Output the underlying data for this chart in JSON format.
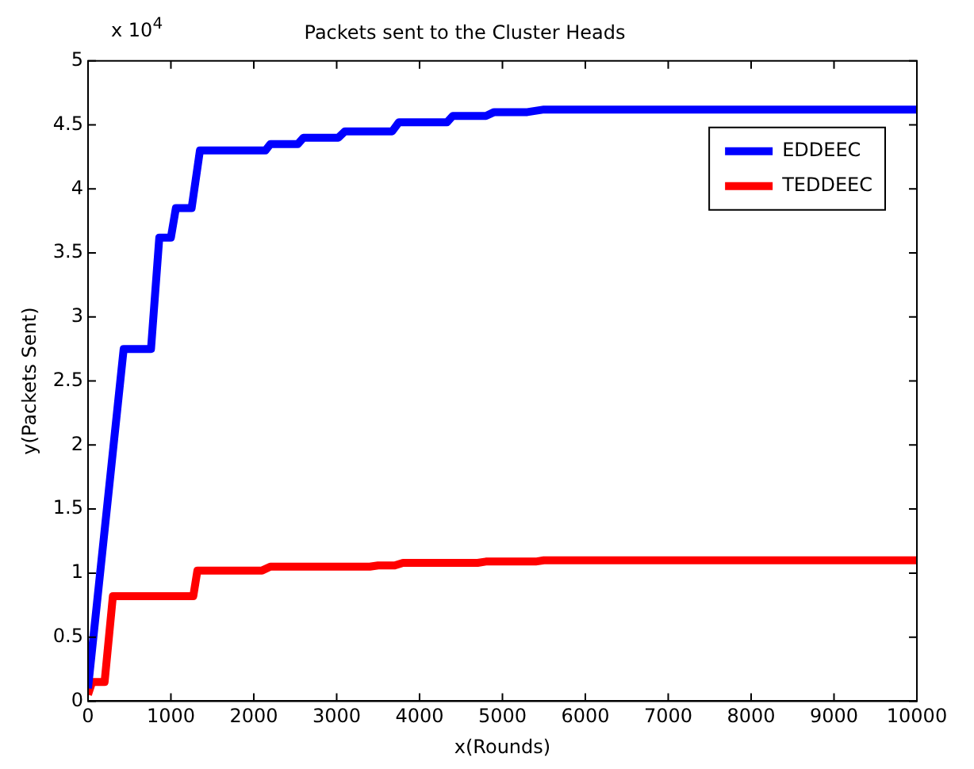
{
  "chart_data": {
    "type": "line",
    "title": "Packets sent to the Cluster Heads",
    "xlabel": "x(Rounds)",
    "ylabel": "y(Packets Sent)",
    "annotations": [
      "x 10$^{4}$"
    ],
    "xlim": [
      0,
      10000
    ],
    "xticks": [
      0,
      1000,
      2000,
      3000,
      4000,
      5000,
      6000,
      7000,
      8000,
      9000,
      10000
    ],
    "ylim": [
      0,
      5
    ],
    "yticks": [
      0,
      0.5,
      1,
      1.5,
      2,
      2.5,
      3,
      3.5,
      4,
      4.5,
      5
    ],
    "grid": false,
    "legend": "top right",
    "marker": "none",
    "line_style": "solid",
    "series": [
      {
        "name": "EDDEEC",
        "color": "#0000ff",
        "x": [
          0,
          430,
          760,
          860,
          1000,
          1060,
          1250,
          1350,
          2140,
          2200,
          2530,
          2600,
          3020,
          3100,
          3670,
          3750,
          4330,
          4400,
          4800,
          4900,
          5300,
          5500,
          10000
        ],
        "values": [
          0.1,
          2.75,
          2.75,
          3.62,
          3.62,
          3.85,
          3.85,
          4.3,
          4.3,
          4.35,
          4.35,
          4.4,
          4.4,
          4.45,
          4.45,
          4.52,
          4.52,
          4.57,
          4.57,
          4.6,
          4.6,
          4.62,
          4.62
        ]
      },
      {
        "name": "TEDDEEC",
        "color": "#ff0000",
        "x": [
          0,
          50,
          200,
          300,
          1270,
          1320,
          2100,
          2200,
          3400,
          3500,
          3700,
          3800,
          4700,
          4800,
          5400,
          5500,
          10000
        ],
        "values": [
          0.05,
          0.15,
          0.15,
          0.82,
          0.82,
          1.02,
          1.02,
          1.05,
          1.05,
          1.06,
          1.06,
          1.08,
          1.08,
          1.09,
          1.09,
          1.1,
          1.1
        ]
      }
    ]
  }
}
